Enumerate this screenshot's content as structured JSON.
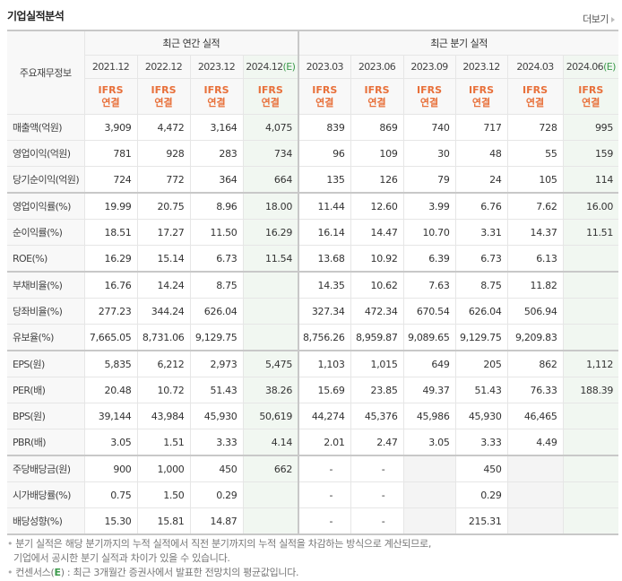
{
  "header": {
    "title": "기업실적분석",
    "more_label": "더보기"
  },
  "table": {
    "corner_label": "주요재무정보",
    "groups": {
      "annual": "최근 연간 실적",
      "quarterly": "최근 분기 실적"
    },
    "periods": [
      {
        "label": "2021.12",
        "est": ""
      },
      {
        "label": "2022.12",
        "est": ""
      },
      {
        "label": "2023.12",
        "est": ""
      },
      {
        "label": "2024.12",
        "est": "(E)"
      },
      {
        "label": "2023.03",
        "est": ""
      },
      {
        "label": "2023.06",
        "est": ""
      },
      {
        "label": "2023.09",
        "est": ""
      },
      {
        "label": "2023.12",
        "est": ""
      },
      {
        "label": "2024.03",
        "est": ""
      },
      {
        "label": "2024.06",
        "est": "(E)"
      }
    ],
    "basis_line1": "IFRS",
    "basis_line2": "연결",
    "rows": [
      {
        "label": "매출액(억원)",
        "values": [
          "3,909",
          "4,472",
          "3,164",
          "4,075",
          "839",
          "869",
          "740",
          "717",
          "728",
          "995"
        ]
      },
      {
        "label": "영업이익(억원)",
        "values": [
          "781",
          "928",
          "283",
          "734",
          "96",
          "109",
          "30",
          "48",
          "55",
          "159"
        ]
      },
      {
        "label": "당기순이익(억원)",
        "values": [
          "724",
          "772",
          "364",
          "664",
          "135",
          "126",
          "79",
          "24",
          "105",
          "114"
        ]
      },
      {
        "label": "영업이익률(%)",
        "values": [
          "19.99",
          "20.75",
          "8.96",
          "18.00",
          "11.44",
          "12.60",
          "3.99",
          "6.76",
          "7.62",
          "16.00"
        ]
      },
      {
        "label": "순이익률(%)",
        "values": [
          "18.51",
          "17.27",
          "11.50",
          "16.29",
          "16.14",
          "14.47",
          "10.70",
          "3.31",
          "14.37",
          "11.51"
        ]
      },
      {
        "label": "ROE(%)",
        "values": [
          "16.29",
          "15.14",
          "6.73",
          "11.54",
          "13.68",
          "10.92",
          "6.39",
          "6.73",
          "6.13",
          ""
        ]
      },
      {
        "label": "부채비율(%)",
        "values": [
          "16.76",
          "14.24",
          "8.75",
          "",
          "14.35",
          "10.62",
          "7.63",
          "8.75",
          "11.82",
          ""
        ]
      },
      {
        "label": "당좌비율(%)",
        "values": [
          "277.23",
          "344.24",
          "626.04",
          "",
          "327.34",
          "472.34",
          "670.54",
          "626.04",
          "506.94",
          ""
        ]
      },
      {
        "label": "유보율(%)",
        "values": [
          "7,665.05",
          "8,731.06",
          "9,129.75",
          "",
          "8,756.26",
          "8,959.87",
          "9,089.65",
          "9,129.75",
          "9,209.83",
          ""
        ]
      },
      {
        "label": "EPS(원)",
        "values": [
          "5,835",
          "6,212",
          "2,973",
          "5,475",
          "1,103",
          "1,015",
          "649",
          "205",
          "862",
          "1,112"
        ]
      },
      {
        "label": "PER(배)",
        "values": [
          "20.48",
          "10.72",
          "51.43",
          "38.26",
          "15.69",
          "23.85",
          "49.37",
          "51.43",
          "76.33",
          "188.39"
        ]
      },
      {
        "label": "BPS(원)",
        "values": [
          "39,144",
          "43,984",
          "45,930",
          "50,619",
          "44,274",
          "45,376",
          "45,986",
          "45,930",
          "46,465",
          ""
        ]
      },
      {
        "label": "PBR(배)",
        "values": [
          "3.05",
          "1.51",
          "3.33",
          "4.14",
          "2.01",
          "2.47",
          "3.05",
          "3.33",
          "4.49",
          ""
        ]
      },
      {
        "label": "주당배당금(원)",
        "values": [
          "900",
          "1,000",
          "450",
          "662",
          "-",
          "-",
          "",
          "450",
          "",
          ""
        ]
      },
      {
        "label": "시가배당률(%)",
        "values": [
          "0.75",
          "1.50",
          "0.29",
          "",
          "-",
          "-",
          "",
          "0.29",
          "",
          ""
        ]
      },
      {
        "label": "배당성향(%)",
        "values": [
          "15.30",
          "15.81",
          "14.87",
          "",
          "-",
          "-",
          "",
          "215.31",
          "",
          ""
        ]
      }
    ]
  },
  "notes": {
    "line1": "분기 실적은 해당 분기까지의 누적 실적에서 직전 분기까지의 누적 실적을 차감하는 방식으로 계산되므로,",
    "line2": "기업에서 공시한 분기 실적과 차이가 있을 수 있습니다.",
    "line3_prefix": "컨센서스(",
    "line3_e": "E",
    "line3_suffix": ") : 최근 3개월간 증권사에서 발표한 전망치의 평균값입니다."
  },
  "colors": {
    "ifrs": "#e8703a",
    "estimate": "#3c9a4c",
    "estimate_bg": "#f1f7f1",
    "header_bg": "#f8f8f8"
  }
}
